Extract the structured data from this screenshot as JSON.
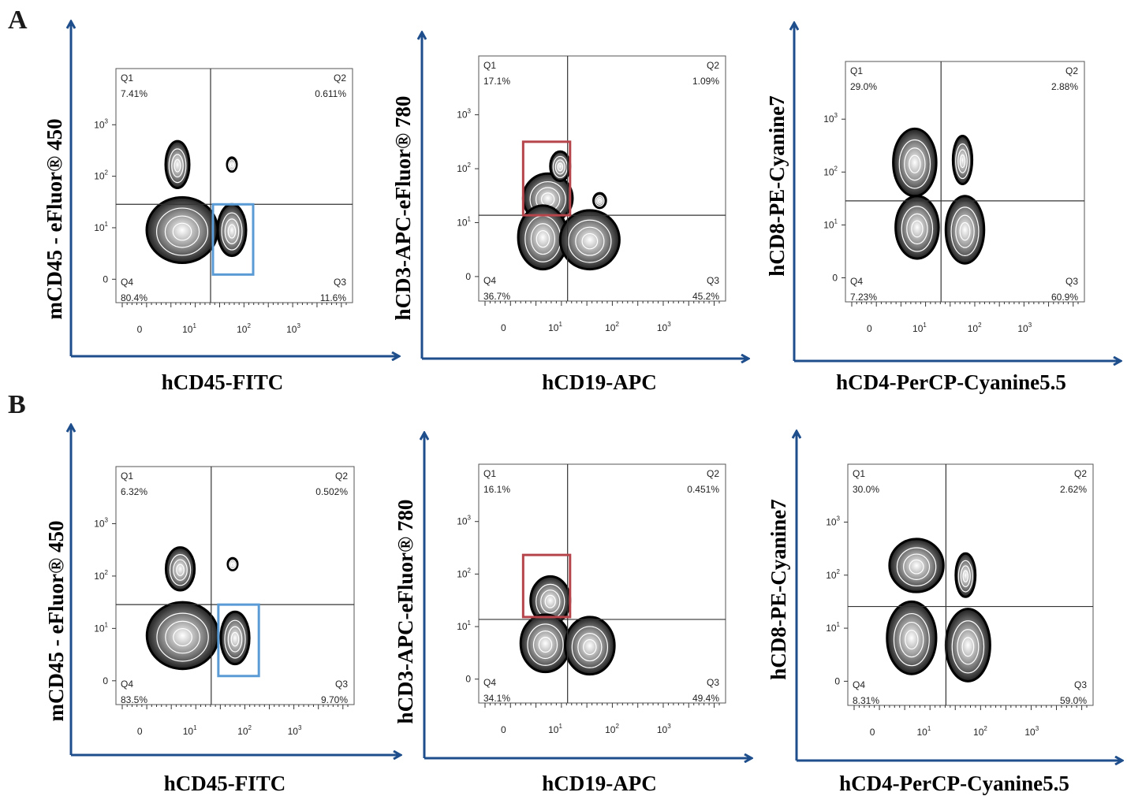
{
  "figure": {
    "panel_labels": [
      "A",
      "B"
    ],
    "colors": {
      "axis_arrow": "#1f4e8c",
      "gate_blue": "#5b9bd5",
      "gate_red": "#b5444b",
      "density_dark": "#000000",
      "density_light": "#ffffff"
    }
  },
  "chart_data": [
    {
      "type": "scatter",
      "row": "A",
      "col": 0,
      "xlabel": "hCD45-FITC",
      "ylabel": "mCD45 - eFluor® 450",
      "x_ticks": [
        "0",
        "10^1",
        "10^2",
        "10^3"
      ],
      "y_ticks": [
        "0",
        "10^1",
        "10^2",
        "10^3"
      ],
      "quadrants": {
        "Q1": {
          "name": "Q1",
          "percent": "7.41%"
        },
        "Q2": {
          "name": "Q2",
          "percent": "0.611%"
        },
        "Q3": {
          "name": "Q3",
          "percent": "11.6%"
        },
        "Q4": {
          "name": "Q4",
          "percent": "80.4%"
        }
      },
      "gate": "blue"
    },
    {
      "type": "scatter",
      "row": "A",
      "col": 1,
      "xlabel": "hCD19-APC",
      "ylabel": "hCD3-APC-eFluor® 780",
      "x_ticks": [
        "0",
        "10^1",
        "10^2",
        "10^3"
      ],
      "y_ticks": [
        "0",
        "10^1",
        "10^2",
        "10^3"
      ],
      "quadrants": {
        "Q1": {
          "name": "Q1",
          "percent": "17.1%"
        },
        "Q2": {
          "name": "Q2",
          "percent": "1.09%"
        },
        "Q3": {
          "name": "Q3",
          "percent": "45.2%"
        },
        "Q4": {
          "name": "Q4",
          "percent": "36.7%"
        }
      },
      "gate": "red"
    },
    {
      "type": "scatter",
      "row": "A",
      "col": 2,
      "xlabel": "hCD4-PerCP-Cyanine5.5",
      "ylabel": "hCD8-PE-Cyanine7",
      "x_ticks": [
        "0",
        "10^1",
        "10^2",
        "10^3"
      ],
      "y_ticks": [
        "0",
        "10^1",
        "10^2",
        "10^3"
      ],
      "quadrants": {
        "Q1": {
          "name": "Q1",
          "percent": "29.0%"
        },
        "Q2": {
          "name": "Q2",
          "percent": "2.88%"
        },
        "Q3": {
          "name": "Q3",
          "percent": "60.9%"
        },
        "Q4": {
          "name": "Q4",
          "percent": "7.23%"
        }
      },
      "gate": "none"
    },
    {
      "type": "scatter",
      "row": "B",
      "col": 0,
      "xlabel": "hCD45-FITC",
      "ylabel": "mCD45 - eFluor® 450",
      "x_ticks": [
        "0",
        "10^1",
        "10^2",
        "10^3"
      ],
      "y_ticks": [
        "0",
        "10^1",
        "10^2",
        "10^3"
      ],
      "quadrants": {
        "Q1": {
          "name": "Q1",
          "percent": "6.32%"
        },
        "Q2": {
          "name": "Q2",
          "percent": "0.502%"
        },
        "Q3": {
          "name": "Q3",
          "percent": "9.70%"
        },
        "Q4": {
          "name": "Q4",
          "percent": "83.5%"
        }
      },
      "gate": "blue"
    },
    {
      "type": "scatter",
      "row": "B",
      "col": 1,
      "xlabel": "hCD19-APC",
      "ylabel": "hCD3-APC-eFluor® 780",
      "x_ticks": [
        "0",
        "10^1",
        "10^2",
        "10^3"
      ],
      "y_ticks": [
        "0",
        "10^1",
        "10^2",
        "10^3"
      ],
      "quadrants": {
        "Q1": {
          "name": "Q1",
          "percent": "16.1%"
        },
        "Q2": {
          "name": "Q2",
          "percent": "0.451%"
        },
        "Q3": {
          "name": "Q3",
          "percent": "49.4%"
        },
        "Q4": {
          "name": "Q4",
          "percent": "34.1%"
        }
      },
      "gate": "red"
    },
    {
      "type": "scatter",
      "row": "B",
      "col": 2,
      "xlabel": "hCD4-PerCP-Cyanine5.5",
      "ylabel": "hCD8-PE-Cyanine7",
      "x_ticks": [
        "0",
        "10^1",
        "10^2",
        "10^3"
      ],
      "y_ticks": [
        "0",
        "10^1",
        "10^2",
        "10^3"
      ],
      "quadrants": {
        "Q1": {
          "name": "Q1",
          "percent": "30.0%"
        },
        "Q2": {
          "name": "Q2",
          "percent": "2.62%"
        },
        "Q3": {
          "name": "Q3",
          "percent": "59.0%"
        },
        "Q4": {
          "name": "Q4",
          "percent": "8.31%"
        }
      },
      "gate": "none"
    }
  ]
}
